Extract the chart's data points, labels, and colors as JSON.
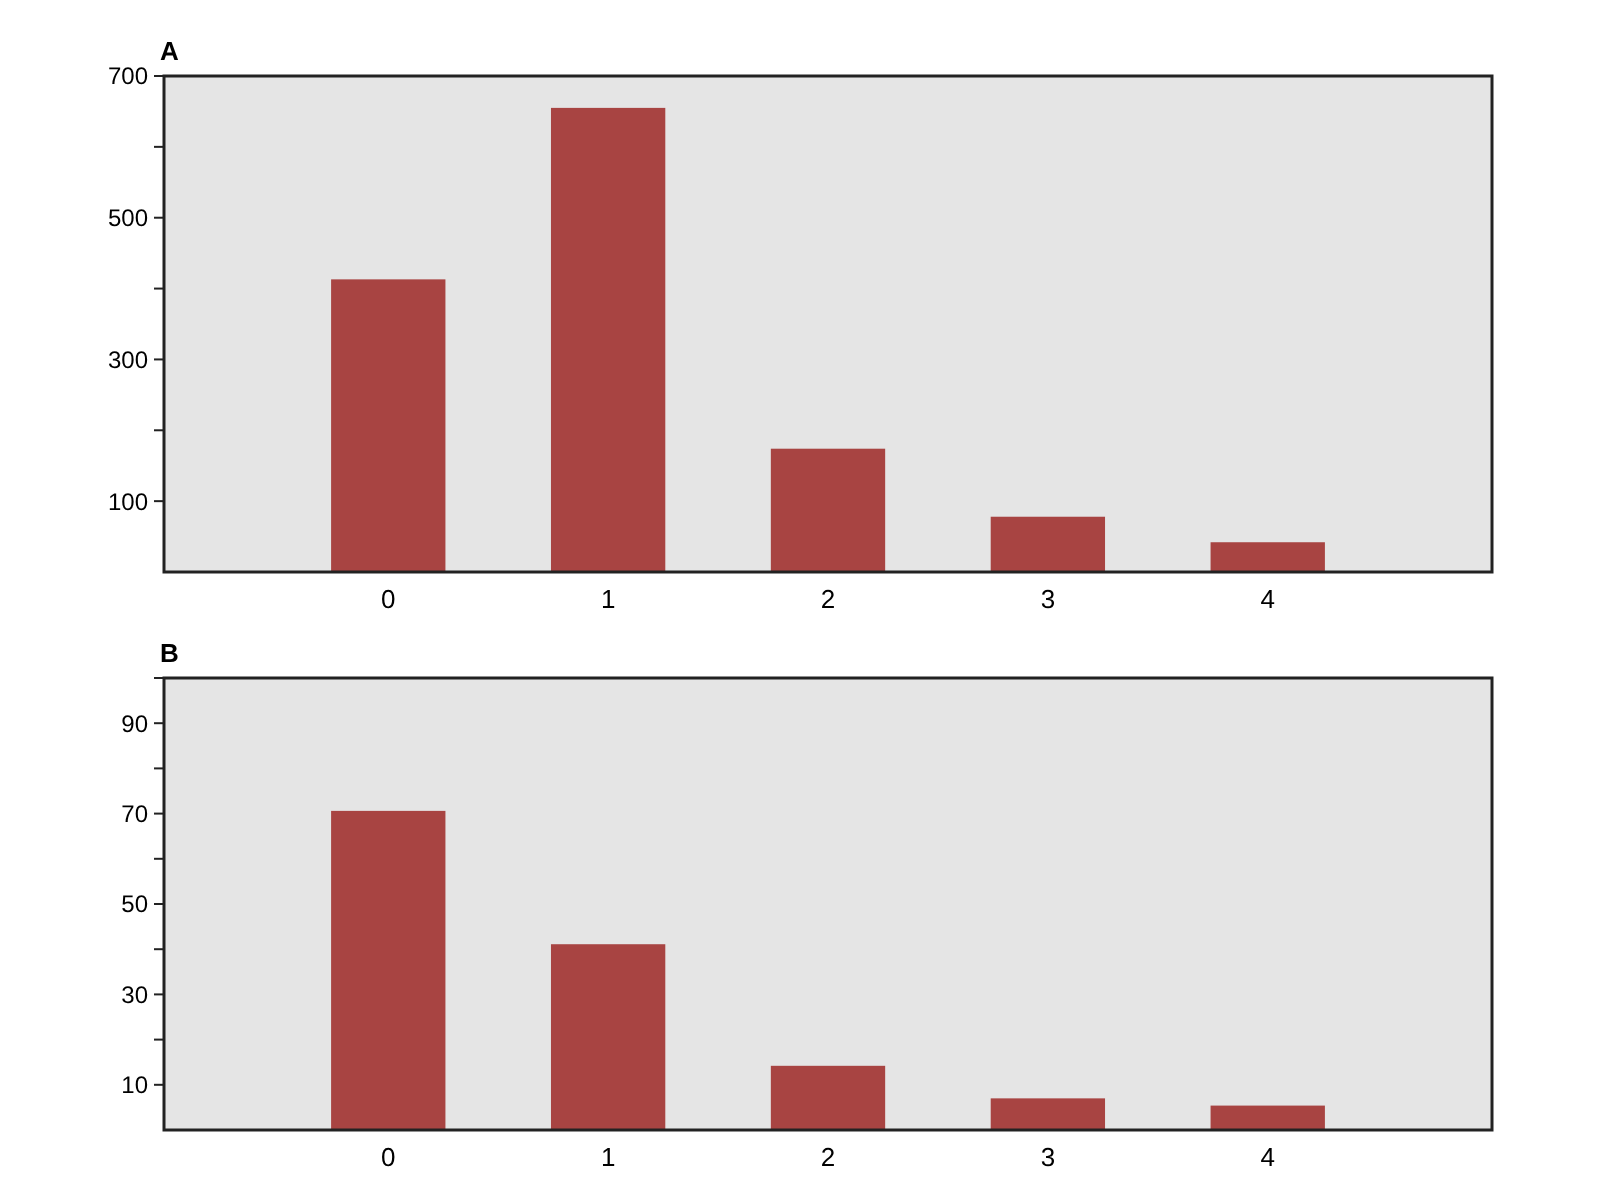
{
  "chart_data": [
    {
      "type": "bar",
      "title": "A",
      "categories": [
        "0",
        "1",
        "2",
        "3",
        "4"
      ],
      "values": [
        413,
        655,
        174,
        78,
        42
      ],
      "color": "#a84442",
      "ylim": [
        0,
        700
      ],
      "yticks": [
        100,
        {
          "value": 200,
          "label": null
        },
        300,
        {
          "value": 400,
          "label": null
        },
        500,
        {
          "value": 600,
          "label": null
        },
        700
      ]
    },
    {
      "type": "bar",
      "title": "B",
      "categories": [
        "0",
        "1",
        "2",
        "3",
        "4"
      ],
      "values": [
        70.6,
        41.1,
        14.2,
        7,
        5.4
      ],
      "color": "#a84442",
      "ylim": [
        0,
        100
      ],
      "yticks": [
        10,
        {
          "value": 20,
          "label": null
        },
        30,
        {
          "value": 40,
          "label": null
        },
        50,
        {
          "value": 60,
          "label": null
        },
        70,
        {
          "value": 80,
          "label": null
        },
        90,
        {
          "value": 100,
          "label": null
        }
      ]
    }
  ]
}
